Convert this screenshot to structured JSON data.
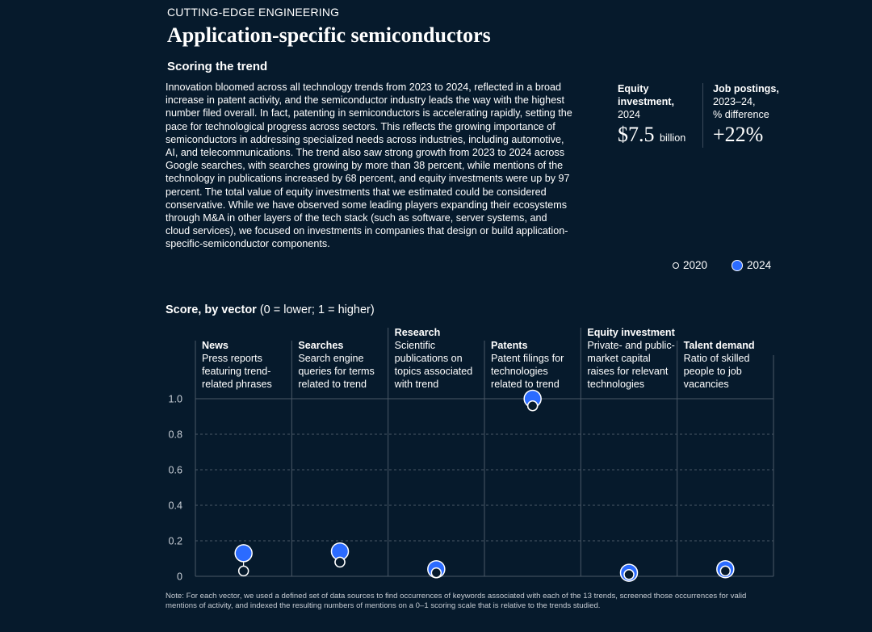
{
  "header": {
    "eyebrow": "CUTTING-EDGE ENGINEERING",
    "title": "Application-specific semiconductors",
    "subtitle": "Scoring the trend"
  },
  "body_text": "Innovation bloomed across all technology trends from 2023 to 2024, reflected in a broad increase in patent activity, and the semiconductor industry leads the way with the highest number filed overall. In fact, patenting in semiconductors is accelerating rapidly, setting the pace for technological progress across sectors. This reflects the growing importance of semiconductors in addressing specialized needs across industries, including automotive, AI, and telecommunications. The trend also saw strong growth from 2023 to 2024 across Google searches, with searches growing by more than 38 percent, while mentions of the technology in publications increased by 68 percent, and equity investments were up by 97 percent. The total value of equity investments that we estimated could be considered conservative. While we have observed some leading players expanding their ecosystems through M&A in other layers of the tech stack (such as software, server systems, and cloud services), we focused on investments in companies that design or build application-specific-semiconductor components.",
  "kpis": {
    "equity": {
      "label_bold_1": "Equity",
      "label_bold_2": "investment,",
      "label_rest": "2024",
      "value": "$7.5",
      "unit": "billion"
    },
    "jobs": {
      "label_bold_1": "Job postings,",
      "label_rest_1": "2023–24,",
      "label_rest_2": "% difference",
      "value": "+22%"
    }
  },
  "legend": {
    "y2020": "2020",
    "y2024": "2024"
  },
  "chart_title": {
    "bold": "Score, by vector",
    "rest": " (0 = lower; 1 = higher)"
  },
  "note": "Note: For each vector, we used a defined set of data sources to find occurrences of keywords associated with each of the 13 trends, screened those occurrences for valid mentions of activity, and indexed the resulting numbers of mentions on a 0–1 scoring scale that is relative to the trends studied.",
  "colors": {
    "background": "#061a2c",
    "accent": "#2b6bff",
    "text": "#ffffff",
    "grid": "#4a5866"
  },
  "chart_data": {
    "type": "scatter",
    "title": "Score, by vector (0 = lower; 1 = higher)",
    "categories": [
      "News",
      "Searches",
      "Research",
      "Patents",
      "Equity investment",
      "Talent demand"
    ],
    "descriptions": [
      [
        "Press reports",
        "featuring trend-",
        "related phrases"
      ],
      [
        "Search engine",
        "queries for terms",
        "related to trend"
      ],
      [
        "Scientific",
        "publications on",
        "topics associated",
        "with trend"
      ],
      [
        "Patent filings for",
        "technologies",
        "related to trend"
      ],
      [
        "Private- and public-",
        "market capital",
        "raises for relevant",
        "technologies"
      ],
      [
        "Ratio of skilled",
        "people to job",
        "vacancies"
      ]
    ],
    "series": [
      {
        "name": "2020",
        "values": [
          0.03,
          0.08,
          0.02,
          0.96,
          0.01,
          0.03
        ]
      },
      {
        "name": "2024",
        "values": [
          0.13,
          0.14,
          0.04,
          1.0,
          0.02,
          0.04
        ]
      }
    ],
    "ylim": [
      0,
      1
    ],
    "yticks": [
      "0",
      "0.2",
      "0.4",
      "0.6",
      "0.8",
      "1.0"
    ],
    "grid": true,
    "legend_position": "top-right"
  }
}
